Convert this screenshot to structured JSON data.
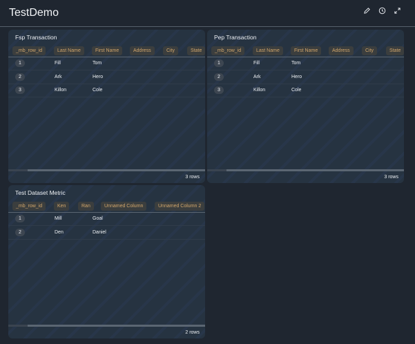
{
  "header": {
    "title": "TestDemo"
  },
  "cards": [
    {
      "title": "Fsp Transaction",
      "columns": [
        "_mb_row_id",
        "Last Name",
        "First Name",
        "Address",
        "City",
        "State"
      ],
      "rows": [
        [
          1,
          "Fill",
          "Tom"
        ],
        [
          2,
          "Ark",
          "Hero"
        ],
        [
          3,
          "Killon",
          "Cole"
        ]
      ],
      "footer": "3 rows"
    },
    {
      "title": "Pep Transaction",
      "columns": [
        "_mb_row_id",
        "Last Name",
        "First Name",
        "Address",
        "City",
        "State"
      ],
      "rows": [
        [
          1,
          "Fill",
          "Tom"
        ],
        [
          2,
          "Ark",
          "Hero"
        ],
        [
          3,
          "Killon",
          "Cole"
        ]
      ],
      "footer": "3 rows"
    },
    {
      "title": "Test Dataset Metric",
      "columns": [
        "_mb_row_id",
        "Ken",
        "Ran",
        "Unnamed Column",
        "Unnamed Column 2"
      ],
      "rows": [
        [
          1,
          "Mill",
          "Goal"
        ],
        [
          2,
          "Den",
          "Daniel"
        ]
      ],
      "footer": "2 rows"
    }
  ]
}
